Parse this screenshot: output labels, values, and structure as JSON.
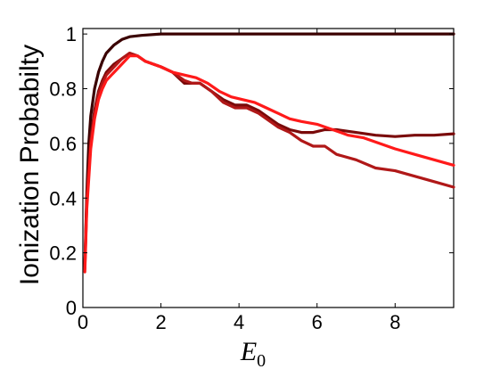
{
  "chart_data": {
    "type": "line",
    "title": "",
    "ylabel": "Ionization Probabilty",
    "xlabel": {
      "base": "E",
      "sub": "0"
    },
    "xlim": [
      0,
      9.5
    ],
    "ylim": [
      0,
      1.02
    ],
    "xticks": [
      0,
      2,
      4,
      6,
      8
    ],
    "xtick_labels": [
      "0",
      "2",
      "4",
      "6",
      "8"
    ],
    "yticks": [
      0,
      0.2,
      0.4,
      0.6,
      0.8,
      1
    ],
    "ytick_labels": [
      "0",
      "0.2",
      "0.4",
      "0.6",
      "0.8",
      "1"
    ],
    "grid": false,
    "series": [
      {
        "color": "#3a0000",
        "x": [
          0.05,
          0.1,
          0.15,
          0.2,
          0.3,
          0.4,
          0.5,
          0.6,
          0.8,
          1.0,
          1.2,
          1.5,
          2.0,
          2.5,
          3,
          4,
          5,
          6,
          7,
          8,
          9,
          9.5
        ],
        "values": [
          0.16,
          0.42,
          0.6,
          0.7,
          0.8,
          0.86,
          0.9,
          0.93,
          0.96,
          0.98,
          0.99,
          0.995,
          1.0,
          1.0,
          1.0,
          1.0,
          1.0,
          1.0,
          1.0,
          1.0,
          1.0,
          1.0
        ]
      },
      {
        "color": "#7a0a0a",
        "x": [
          0.05,
          0.1,
          0.2,
          0.3,
          0.4,
          0.5,
          0.6,
          0.8,
          1.0,
          1.2,
          1.4,
          1.6,
          1.8,
          2.0,
          2.3,
          2.6,
          2.8,
          3.0,
          3.3,
          3.6,
          3.9,
          4.2,
          4.5,
          4.8,
          5.0,
          5.3,
          5.6,
          5.9,
          6.2,
          6.5,
          7.0,
          7.5,
          8.0,
          8.5,
          9.0,
          9.5
        ],
        "values": [
          0.15,
          0.4,
          0.62,
          0.72,
          0.79,
          0.83,
          0.86,
          0.89,
          0.91,
          0.93,
          0.92,
          0.9,
          0.89,
          0.88,
          0.86,
          0.82,
          0.82,
          0.82,
          0.79,
          0.76,
          0.74,
          0.74,
          0.72,
          0.69,
          0.67,
          0.65,
          0.64,
          0.64,
          0.65,
          0.65,
          0.64,
          0.63,
          0.625,
          0.63,
          0.63,
          0.635
        ]
      },
      {
        "color": "#b01818",
        "x": [
          0.05,
          0.1,
          0.2,
          0.3,
          0.4,
          0.5,
          0.6,
          0.8,
          1.0,
          1.2,
          1.4,
          1.6,
          1.8,
          2.0,
          2.3,
          2.6,
          2.8,
          3.0,
          3.3,
          3.6,
          3.9,
          4.2,
          4.5,
          4.8,
          5.0,
          5.3,
          5.6,
          5.9,
          6.2,
          6.5,
          7.0,
          7.5,
          8.0,
          8.5,
          9.0,
          9.5
        ],
        "values": [
          0.14,
          0.38,
          0.6,
          0.7,
          0.78,
          0.82,
          0.85,
          0.88,
          0.91,
          0.93,
          0.92,
          0.9,
          0.89,
          0.88,
          0.86,
          0.83,
          0.82,
          0.82,
          0.79,
          0.75,
          0.73,
          0.73,
          0.71,
          0.68,
          0.66,
          0.64,
          0.61,
          0.59,
          0.59,
          0.56,
          0.54,
          0.51,
          0.5,
          0.48,
          0.46,
          0.44
        ]
      },
      {
        "color": "#ff1a1a",
        "x": [
          0.05,
          0.1,
          0.2,
          0.3,
          0.4,
          0.5,
          0.6,
          0.8,
          1.0,
          1.2,
          1.4,
          1.6,
          1.8,
          2.0,
          2.3,
          2.6,
          2.9,
          3.2,
          3.5,
          3.8,
          4.1,
          4.4,
          4.7,
          5.0,
          5.3,
          5.6,
          6.0,
          6.4,
          6.8,
          7.2,
          7.6,
          8.0,
          8.5,
          9.0,
          9.5
        ],
        "values": [
          0.13,
          0.36,
          0.58,
          0.69,
          0.76,
          0.8,
          0.83,
          0.86,
          0.89,
          0.92,
          0.92,
          0.9,
          0.89,
          0.88,
          0.86,
          0.85,
          0.84,
          0.82,
          0.79,
          0.77,
          0.76,
          0.75,
          0.73,
          0.71,
          0.69,
          0.68,
          0.67,
          0.65,
          0.63,
          0.62,
          0.6,
          0.58,
          0.56,
          0.54,
          0.52
        ]
      }
    ]
  }
}
